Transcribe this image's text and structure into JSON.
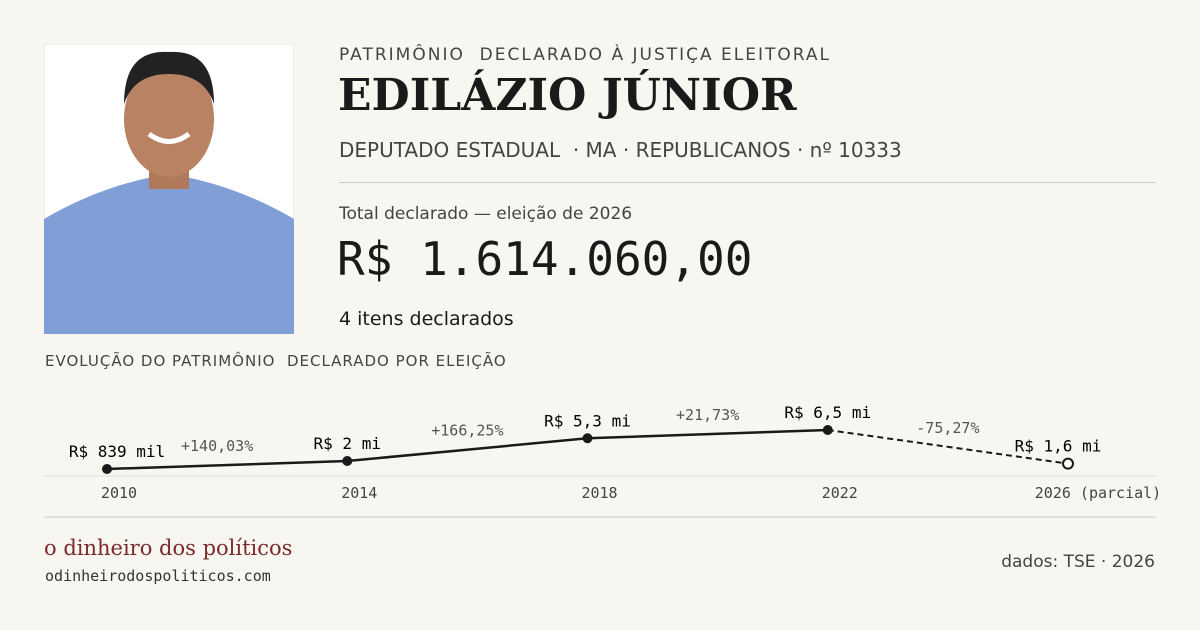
{
  "header": {
    "kicker": "PATRIMÔNIO  DECLARADO À JUSTIÇA ELEITORAL",
    "name": "EDILÁZIO JÚNIOR",
    "role": "DEPUTADO ESTADUAL  · MA · REPUBLICANOS · nº 10333"
  },
  "summary": {
    "label": "Total declarado — eleição de 2026",
    "total": "R$ 1.614.060,00",
    "items": "4 itens declarados"
  },
  "chart_data": {
    "type": "line",
    "title": "EVOLUÇÃO DO PATRIMÔNIO  DECLARADO POR ELEIÇÃO",
    "categories": [
      "2010",
      "2014",
      "2018",
      "2022",
      "2026 (parcial)"
    ],
    "values": [
      839000,
      2000000,
      5300000,
      6500000,
      1614060
    ],
    "value_labels": [
      "R$ 839 mil",
      "R$ 2 mi",
      "R$ 5,3 mi",
      "R$ 6,5 mi",
      "R$ 1,6 mi"
    ],
    "changes": [
      {
        "value": 140.03,
        "label": "+140,03%"
      },
      {
        "value": 166.25,
        "label": "+166,25%"
      },
      {
        "value": 21.73,
        "label": "+21,73%"
      },
      {
        "value": -75.27,
        "label": "-75,27%"
      }
    ],
    "color": "#1a1a1a",
    "last_partial": true
  },
  "footer": {
    "brand": "o dinheiro dos políticos",
    "site": "odinheirodospoliticos.com",
    "source": "dados: TSE · 2026"
  }
}
